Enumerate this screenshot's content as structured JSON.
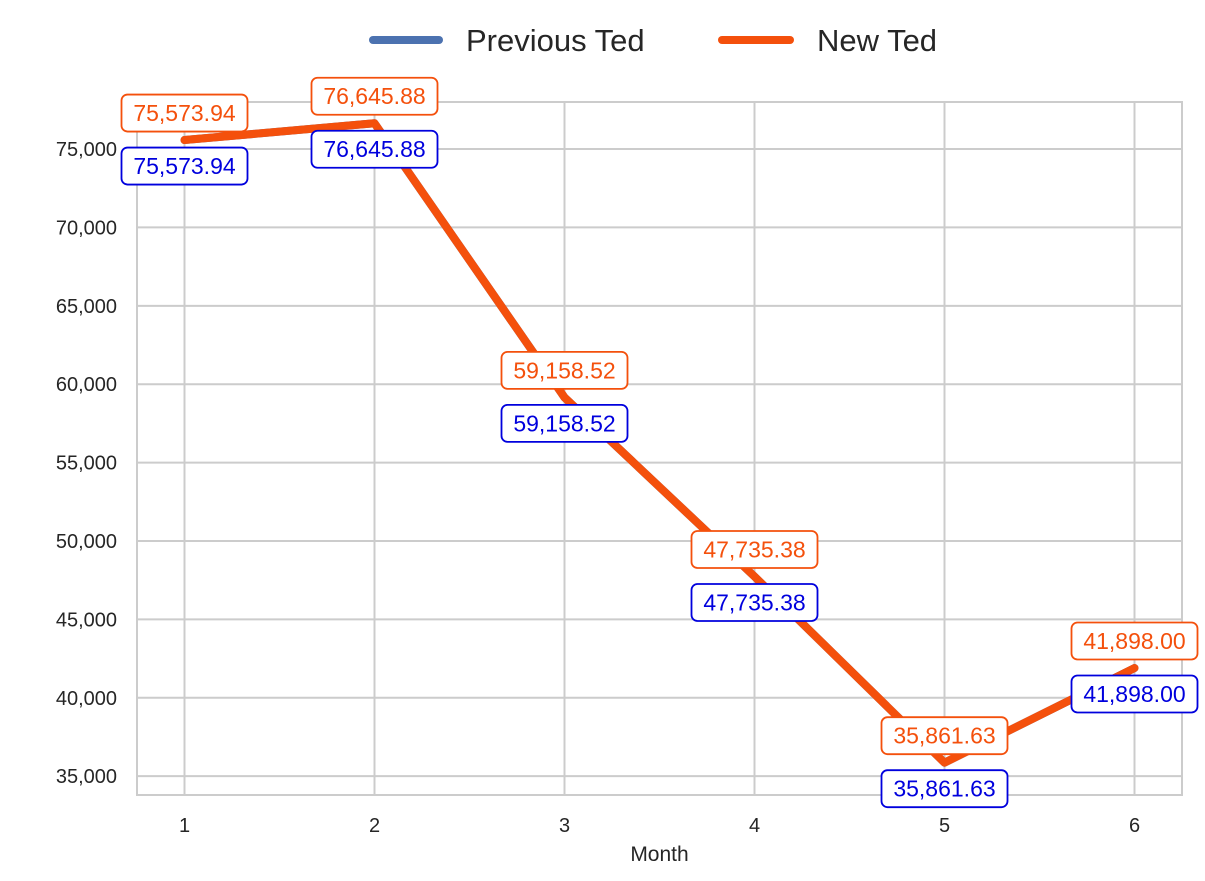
{
  "chart_data": {
    "type": "line",
    "title": "",
    "xlabel": "Month",
    "ylabel": "",
    "x": [
      1,
      2,
      3,
      4,
      5,
      6
    ],
    "xticks": [
      "1",
      "2",
      "3",
      "4",
      "5",
      "6"
    ],
    "yticks": [
      "35,000",
      "40,000",
      "45,000",
      "50,000",
      "55,000",
      "60,000",
      "65,000",
      "70,000",
      "75,000"
    ],
    "ylim": [
      33800,
      78000
    ],
    "xlim": [
      0.75,
      6.25
    ],
    "grid": true,
    "legend_position": "top-center",
    "series": [
      {
        "name": "Previous Ted",
        "color": "#4c72b0",
        "label_color": "#0000dd",
        "values": [
          75573.94,
          76645.88,
          59158.52,
          47735.38,
          35861.63,
          41898.0
        ],
        "labels": [
          "75,573.94",
          "76,645.88",
          "59,158.52",
          "47,735.38",
          "35,861.63",
          "41,898.00"
        ]
      },
      {
        "name": "New Ted",
        "color": "#f4500c",
        "label_color": "#f4500c",
        "values": [
          75573.94,
          76645.88,
          59158.52,
          47735.38,
          35861.63,
          41898.0
        ],
        "labels": [
          "75,573.94",
          "76,645.88",
          "59,158.52",
          "47,735.38",
          "35,861.63",
          "41,898.00"
        ]
      }
    ]
  }
}
